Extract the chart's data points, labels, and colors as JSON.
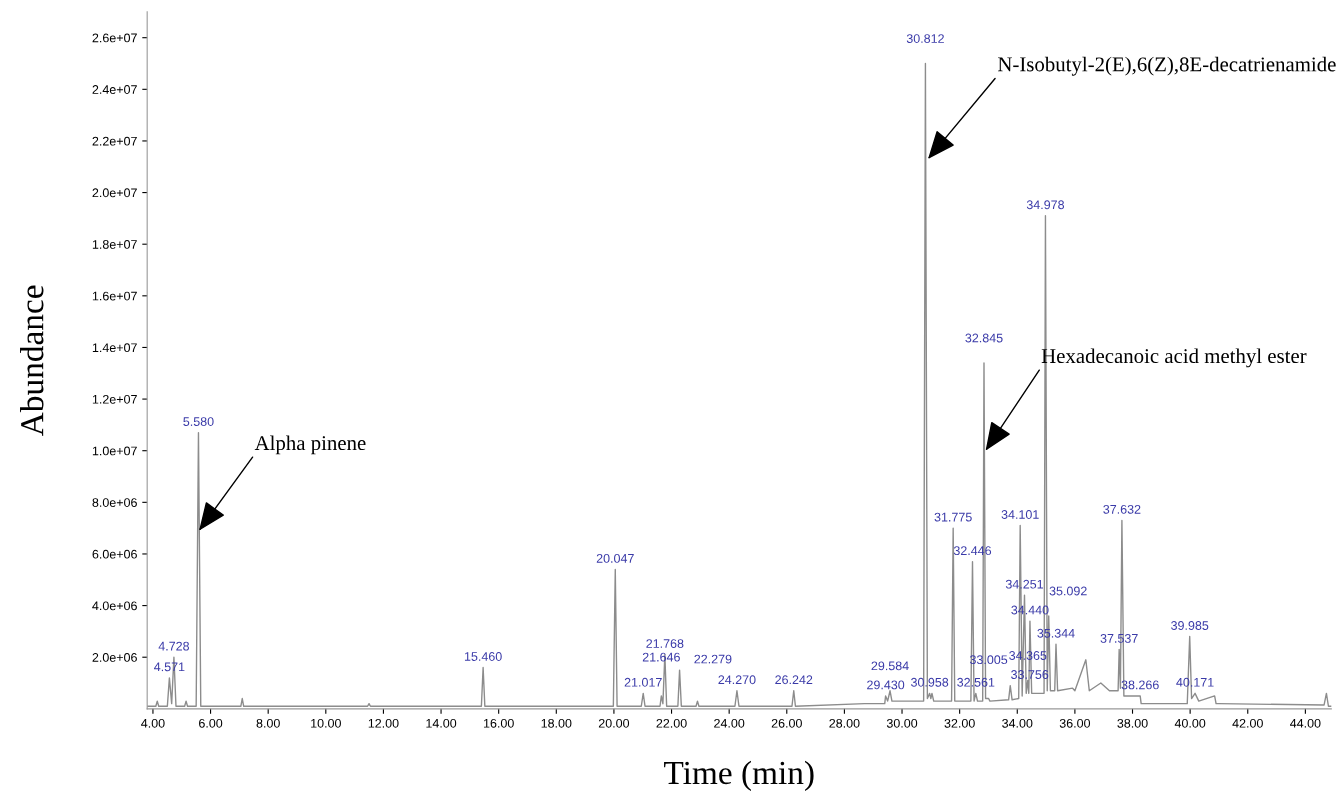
{
  "chart_data": {
    "type": "line",
    "xlabel": "Time (min)",
    "ylabel": "Abundance",
    "xlim": [
      3.8,
      44.9
    ],
    "ylim": [
      0,
      27000000
    ],
    "xticks": [
      {
        "value": 4,
        "label": "4.00"
      },
      {
        "value": 6,
        "label": "6.00"
      },
      {
        "value": 8,
        "label": "8.00"
      },
      {
        "value": 10,
        "label": "10.00"
      },
      {
        "value": 12,
        "label": "12.00"
      },
      {
        "value": 14,
        "label": "14.00"
      },
      {
        "value": 16,
        "label": "16.00"
      },
      {
        "value": 18,
        "label": "18.00"
      },
      {
        "value": 20,
        "label": "20.00"
      },
      {
        "value": 22,
        "label": "22.00"
      },
      {
        "value": 24,
        "label": "24.00"
      },
      {
        "value": 26,
        "label": "26.00"
      },
      {
        "value": 28,
        "label": "28.00"
      },
      {
        "value": 30,
        "label": "30.00"
      },
      {
        "value": 32,
        "label": "32.00"
      },
      {
        "value": 34,
        "label": "34.00"
      },
      {
        "value": 36,
        "label": "36.00"
      },
      {
        "value": 38,
        "label": "38.00"
      },
      {
        "value": 40,
        "label": "40.00"
      },
      {
        "value": 42,
        "label": "42.00"
      },
      {
        "value": 44,
        "label": "44.00"
      }
    ],
    "yticks": [
      {
        "value": 2000000,
        "label": "2.0e+06"
      },
      {
        "value": 4000000,
        "label": "4.0e+06"
      },
      {
        "value": 6000000,
        "label": "6.0e+06"
      },
      {
        "value": 8000000,
        "label": "8.0e+06"
      },
      {
        "value": 10000000,
        "label": "1.0e+07"
      },
      {
        "value": 12000000,
        "label": "1.2e+07"
      },
      {
        "value": 14000000,
        "label": "1.4e+07"
      },
      {
        "value": 16000000,
        "label": "1.6e+07"
      },
      {
        "value": 18000000,
        "label": "1.8e+07"
      },
      {
        "value": 20000000,
        "label": "2.0e+07"
      },
      {
        "value": 22000000,
        "label": "2.2e+07"
      },
      {
        "value": 24000000,
        "label": "2.4e+07"
      },
      {
        "value": 26000000,
        "label": "2.6e+07"
      }
    ],
    "grid": false,
    "marker": "none",
    "line_style": "solid",
    "series": [
      {
        "color": "#8c8c8c",
        "x": [
          3.8,
          4.1,
          4.15,
          4.2,
          4.5,
          4.571,
          4.65,
          4.728,
          4.8,
          5.1,
          5.15,
          5.2,
          5.5,
          5.58,
          5.66,
          7.05,
          7.1,
          7.15,
          11.45,
          11.5,
          11.55,
          15.4,
          15.46,
          15.52,
          19.98,
          20.047,
          20.11,
          20.95,
          21.017,
          21.08,
          21.6,
          21.646,
          21.7,
          21.768,
          21.83,
          22.22,
          22.279,
          22.34,
          22.85,
          22.9,
          22.95,
          24.2,
          24.27,
          24.34,
          26.18,
          26.242,
          26.3,
          28.7,
          29.4,
          29.43,
          29.5,
          29.584,
          29.65,
          30.75,
          30.812,
          30.88,
          30.958,
          31.0,
          31.039,
          31.1,
          31.72,
          31.775,
          31.83,
          32.39,
          32.446,
          32.5,
          32.561,
          32.62,
          32.8,
          32.845,
          32.9,
          33.005,
          33.05,
          33.7,
          33.756,
          33.82,
          34.05,
          34.101,
          34.17,
          34.251,
          34.31,
          34.365,
          34.4,
          34.44,
          34.5,
          34.93,
          34.978,
          35.04,
          35.092,
          35.15,
          35.3,
          35.344,
          35.4,
          35.92,
          36.0,
          36.38,
          36.5,
          36.9,
          37.2,
          37.5,
          37.537,
          37.58,
          37.632,
          37.7,
          38.266,
          38.3,
          38.8,
          39.9,
          39.985,
          40.05,
          40.171,
          40.3,
          40.85,
          40.9,
          41.0,
          44.65,
          44.73,
          44.8,
          44.9
        ],
        "values": [
          100000,
          100000,
          300000,
          100000,
          100000,
          1200000,
          200000,
          2000000,
          100000,
          100000,
          300000,
          100000,
          100000,
          10700000,
          100000,
          100000,
          400000,
          100000,
          100000,
          200000,
          100000,
          100000,
          1600000,
          100000,
          100000,
          5400000,
          100000,
          100000,
          600000,
          100000,
          100000,
          500000,
          200000,
          2100000,
          100000,
          100000,
          1500000,
          100000,
          100000,
          300000,
          100000,
          100000,
          700000,
          100000,
          100000,
          700000,
          100000,
          200000,
          200000,
          500000,
          300000,
          700000,
          300000,
          300000,
          25000000,
          400000,
          600000,
          400000,
          600000,
          300000,
          300000,
          7000000,
          300000,
          300000,
          5700000,
          300000,
          600000,
          300000,
          300000,
          13400000,
          400000,
          400000,
          300000,
          350000,
          900000,
          350000,
          400000,
          7100000,
          500000,
          4400000,
          600000,
          1100000,
          600000,
          3400000,
          600000,
          600000,
          19100000,
          700000,
          3600000,
          700000,
          700000,
          2500000,
          700000,
          800000,
          700000,
          1900000,
          700000,
          1000000,
          700000,
          700000,
          2300000,
          800000,
          7300000,
          500000,
          500000,
          200000,
          200000,
          200000,
          2800000,
          400000,
          600000,
          300000,
          500000,
          200000,
          200000,
          150000,
          600000,
          100000,
          100000
        ]
      }
    ],
    "annotations": [
      {
        "text": "Alpha pinene",
        "x": 5.6,
        "y": 6900000
      },
      {
        "text": "N-Isobutyl-2(E),6(Z),8E-decatrienamide",
        "x": 30.9,
        "y": 21300000
      },
      {
        "text": "Hexadecanoic acid methyl ester",
        "x": 32.9,
        "y": 10000000
      },
      {
        "text": "4.571",
        "x": 4.571,
        "y": 1200000
      },
      {
        "text": "4.728",
        "x": 4.728,
        "y": 2000000
      },
      {
        "text": "5.580",
        "x": 5.58,
        "y": 10700000
      },
      {
        "text": "15.460",
        "x": 15.46,
        "y": 1600000
      },
      {
        "text": "20.047",
        "x": 20.047,
        "y": 5400000
      },
      {
        "text": "21.017",
        "x": 21.017,
        "y": 600000
      },
      {
        "text": "21.646",
        "x": 21.646,
        "y": 500000
      },
      {
        "text": "21.768",
        "x": 21.768,
        "y": 2100000
      },
      {
        "text": "22.279",
        "x": 22.279,
        "y": 1500000
      },
      {
        "text": "24.270",
        "x": 24.27,
        "y": 700000
      },
      {
        "text": "26.242",
        "x": 26.242,
        "y": 700000
      },
      {
        "text": "29.430",
        "x": 29.43,
        "y": 500000
      },
      {
        "text": "29.584",
        "x": 29.584,
        "y": 700000
      },
      {
        "text": "30.812",
        "x": 30.812,
        "y": 25000000
      },
      {
        "text": "30.958",
        "x": 30.958,
        "y": 600000
      },
      {
        "text": "31.775",
        "x": 31.775,
        "y": 7000000
      },
      {
        "text": "32.446",
        "x": 32.446,
        "y": 5700000
      },
      {
        "text": "32.561",
        "x": 32.561,
        "y": 600000
      },
      {
        "text": "32.845",
        "x": 32.845,
        "y": 13400000
      },
      {
        "text": "33.005",
        "x": 33.005,
        "y": 400000
      },
      {
        "text": "33.756",
        "x": 33.756,
        "y": 900000
      },
      {
        "text": "34.101",
        "x": 34.101,
        "y": 7100000
      },
      {
        "text": "34.251",
        "x": 34.251,
        "y": 4400000
      },
      {
        "text": "34.365",
        "x": 34.365,
        "y": 1100000
      },
      {
        "text": "34.440",
        "x": 34.44,
        "y": 3400000
      },
      {
        "text": "34.978",
        "x": 34.978,
        "y": 19100000
      },
      {
        "text": "35.092",
        "x": 35.092,
        "y": 3600000
      },
      {
        "text": "35.344",
        "x": 35.344,
        "y": 2500000
      },
      {
        "text": "37.537",
        "x": 37.537,
        "y": 2300000
      },
      {
        "text": "37.632",
        "x": 37.632,
        "y": 7300000
      },
      {
        "text": "38.266",
        "x": 38.266,
        "y": 500000
      },
      {
        "text": "39.985",
        "x": 39.985,
        "y": 2800000
      },
      {
        "text": "40.171",
        "x": 40.171,
        "y": 600000
      }
    ]
  }
}
